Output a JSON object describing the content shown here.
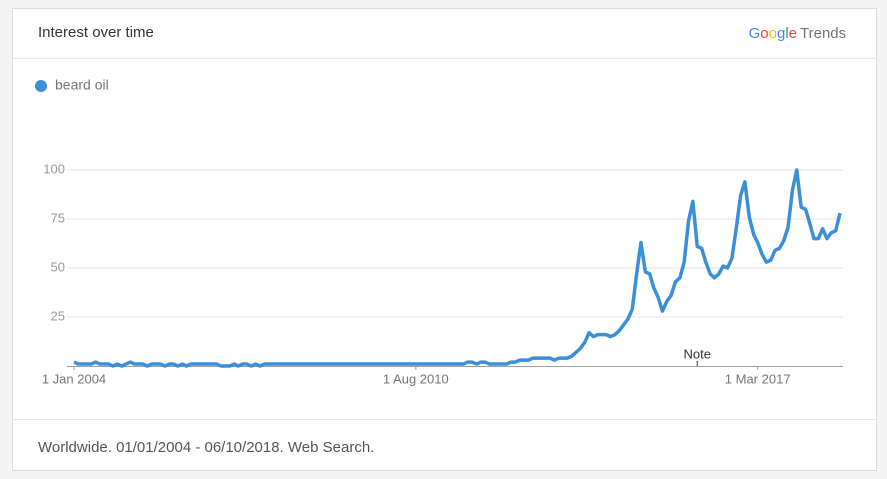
{
  "chart_data": {
    "type": "line",
    "title": "Interest over time",
    "brand": "Google",
    "product": "Trends",
    "footer": "Worldwide. 01/01/2004 - 06/10/2018. Web Search.",
    "grid": true,
    "legend": "top-left",
    "ylim": [
      0,
      100
    ],
    "yticks": [
      25,
      50,
      75,
      100
    ],
    "xlim": [
      "2004-01-01",
      "2018-10-01"
    ],
    "xticks": [
      {
        "value": "2004-01-01",
        "label": "1 Jan 2004"
      },
      {
        "value": "2010-08-01",
        "label": "1 Aug 2010"
      },
      {
        "value": "2017-03-01",
        "label": "1 Mar 2017"
      }
    ],
    "annotations": [
      {
        "x": "2016-01-01",
        "label": "Note"
      }
    ],
    "x": [
      "2004-01-01",
      "2004-02-01",
      "2004-03-01",
      "2004-04-01",
      "2004-05-01",
      "2004-06-01",
      "2004-07-01",
      "2004-08-01",
      "2004-09-01",
      "2004-10-01",
      "2004-11-01",
      "2004-12-01",
      "2005-01-01",
      "2005-02-01",
      "2005-03-01",
      "2005-04-01",
      "2005-05-01",
      "2005-06-01",
      "2005-07-01",
      "2005-08-01",
      "2005-09-01",
      "2005-10-01",
      "2005-11-01",
      "2005-12-01",
      "2006-01-01",
      "2006-02-01",
      "2006-03-01",
      "2006-04-01",
      "2006-05-01",
      "2006-06-01",
      "2006-07-01",
      "2006-08-01",
      "2006-09-01",
      "2006-10-01",
      "2006-11-01",
      "2006-12-01",
      "2007-01-01",
      "2007-02-01",
      "2007-03-01",
      "2007-04-01",
      "2007-05-01",
      "2007-06-01",
      "2007-07-01",
      "2007-08-01",
      "2007-09-01",
      "2007-10-01",
      "2007-11-01",
      "2007-12-01",
      "2008-01-01",
      "2008-02-01",
      "2008-03-01",
      "2008-04-01",
      "2008-05-01",
      "2008-06-01",
      "2008-07-01",
      "2008-08-01",
      "2008-09-01",
      "2008-10-01",
      "2008-11-01",
      "2008-12-01",
      "2009-01-01",
      "2009-02-01",
      "2009-03-01",
      "2009-04-01",
      "2009-05-01",
      "2009-06-01",
      "2009-07-01",
      "2009-08-01",
      "2009-09-01",
      "2009-10-01",
      "2009-11-01",
      "2009-12-01",
      "2010-01-01",
      "2010-02-01",
      "2010-03-01",
      "2010-04-01",
      "2010-05-01",
      "2010-06-01",
      "2010-07-01",
      "2010-08-01",
      "2010-09-01",
      "2010-10-01",
      "2010-11-01",
      "2010-12-01",
      "2011-01-01",
      "2011-02-01",
      "2011-03-01",
      "2011-04-01",
      "2011-05-01",
      "2011-06-01",
      "2011-07-01",
      "2011-08-01",
      "2011-09-01",
      "2011-10-01",
      "2011-11-01",
      "2011-12-01",
      "2012-01-01",
      "2012-02-01",
      "2012-03-01",
      "2012-04-01",
      "2012-05-01",
      "2012-06-01",
      "2012-07-01",
      "2012-08-01",
      "2012-09-01",
      "2012-10-01",
      "2012-11-01",
      "2012-12-01",
      "2013-01-01",
      "2013-02-01",
      "2013-03-01",
      "2013-04-01",
      "2013-05-01",
      "2013-06-01",
      "2013-07-01",
      "2013-08-01",
      "2013-09-01",
      "2013-10-01",
      "2013-11-01",
      "2013-12-01",
      "2014-01-01",
      "2014-02-01",
      "2014-03-01",
      "2014-04-01",
      "2014-05-01",
      "2014-06-01",
      "2014-07-01",
      "2014-08-01",
      "2014-09-01",
      "2014-10-01",
      "2014-11-01",
      "2014-12-01",
      "2015-01-01",
      "2015-02-01",
      "2015-03-01",
      "2015-04-01",
      "2015-05-01",
      "2015-06-01",
      "2015-07-01",
      "2015-08-01",
      "2015-09-01",
      "2015-10-01",
      "2015-11-01",
      "2015-12-01",
      "2016-01-01",
      "2016-02-01",
      "2016-03-01",
      "2016-04-01",
      "2016-05-01",
      "2016-06-01",
      "2016-07-01",
      "2016-08-01",
      "2016-09-01",
      "2016-10-01",
      "2016-11-01",
      "2016-12-01",
      "2017-01-01",
      "2017-02-01",
      "2017-03-01",
      "2017-04-01",
      "2017-05-01",
      "2017-06-01",
      "2017-07-01",
      "2017-08-01",
      "2017-09-01",
      "2017-10-01",
      "2017-11-01",
      "2017-12-01",
      "2018-01-01",
      "2018-02-01",
      "2018-03-01",
      "2018-04-01",
      "2018-05-01",
      "2018-06-01",
      "2018-07-01",
      "2018-08-01",
      "2018-09-01",
      "2018-10-01"
    ],
    "series": [
      {
        "name": "beard oil",
        "color": "#3b8fd8",
        "values": [
          2,
          1,
          1,
          1,
          1,
          2,
          1,
          1,
          1,
          0,
          1,
          0,
          1,
          2,
          1,
          1,
          1,
          0,
          1,
          1,
          1,
          0,
          1,
          1,
          0,
          1,
          0,
          1,
          1,
          1,
          1,
          1,
          1,
          1,
          0,
          0,
          0,
          1,
          0,
          1,
          1,
          0,
          1,
          0,
          1,
          1,
          1,
          1,
          1,
          1,
          1,
          1,
          1,
          1,
          1,
          1,
          1,
          1,
          1,
          1,
          1,
          1,
          1,
          1,
          1,
          1,
          1,
          1,
          1,
          1,
          1,
          1,
          1,
          1,
          1,
          1,
          1,
          1,
          1,
          1,
          1,
          1,
          1,
          1,
          1,
          1,
          1,
          1,
          1,
          1,
          1,
          2,
          2,
          1,
          2,
          2,
          1,
          1,
          1,
          1,
          1,
          2,
          2,
          3,
          3,
          3,
          4,
          4,
          4,
          4,
          4,
          3,
          4,
          4,
          4,
          5,
          7,
          9,
          12,
          17,
          15,
          16,
          16,
          16,
          15,
          16,
          18,
          21,
          24,
          29,
          47,
          63,
          48,
          47,
          40,
          35,
          28,
          33,
          36,
          43,
          45,
          53,
          74,
          84,
          61,
          60,
          53,
          47,
          45,
          47,
          51,
          50,
          55,
          70,
          87,
          94,
          76,
          67,
          63,
          57,
          53,
          54,
          59,
          60,
          64,
          71,
          90,
          100,
          81,
          80,
          73,
          65,
          65,
          70,
          65,
          68,
          69,
          78
        ]
      }
    ]
  }
}
